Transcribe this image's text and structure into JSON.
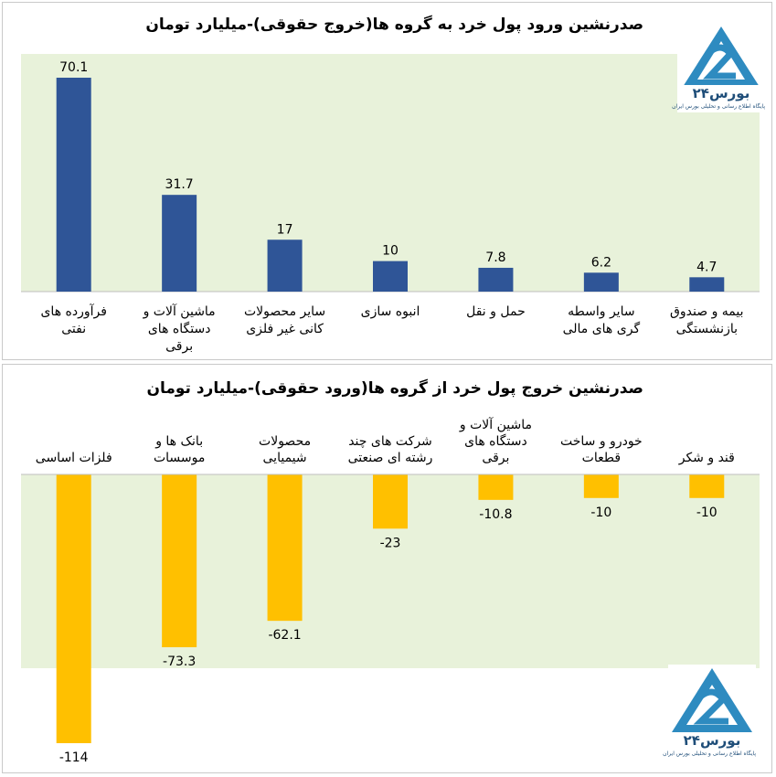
{
  "charts": {
    "inflow": {
      "title": "صدرنشین ورود پول خرد به گروه ها(خروج حقوقی)-میلیارد تومان"
    },
    "outflow": {
      "title": "صدرنشین خروج پول خرد از گروه ها(ورود حقوقی)-میلیارد تومان"
    }
  },
  "logo": {
    "name": "بورس۲۴",
    "tagline": "پایگاه اطلاع رسانی و تحلیلی بورس ایران"
  },
  "chart_data": [
    {
      "type": "bar",
      "title": "صدرنشین ورود پول خرد به گروه ها(خروج حقوقی)-میلیارد تومان",
      "categories": [
        [
          "فرآورده های",
          "نفتی"
        ],
        [
          "ماشین آلات و",
          "دستگاه های",
          "برقی"
        ],
        [
          "سایر محصولات",
          "کانی غیر فلزی"
        ],
        [
          "انبوه سازی"
        ],
        [
          "حمل و نقل"
        ],
        [
          "سایر واسطه",
          "گری های مالی"
        ],
        [
          "بیمه و صندوق",
          "بازنشستگی"
        ]
      ],
      "values": [
        70.1,
        31.7,
        17,
        10,
        7.8,
        6.2,
        4.7
      ],
      "value_labels": [
        "70.1",
        "31.7",
        "17",
        "10",
        "7.8",
        "6.2",
        "4.7"
      ],
      "ylim": [
        0,
        75
      ],
      "bar_color": "#2f5597",
      "background": "#e8f2da",
      "grid": false,
      "legend": "none"
    },
    {
      "type": "bar",
      "title": "صدرنشین خروج پول خرد از گروه ها(ورود حقوقی)-میلیارد تومان",
      "categories": [
        [
          "فلزات اساسی"
        ],
        [
          "بانک ها و",
          "موسسات"
        ],
        [
          "محصولات",
          "شیمیایی"
        ],
        [
          "شرکت های چند",
          "رشته ای صنعتی"
        ],
        [
          "ماشین آلات و",
          "دستگاه های",
          "برقی"
        ],
        [
          "خودرو و ساخت",
          "قطعات"
        ],
        [
          "قند و شکر"
        ]
      ],
      "values": [
        -114,
        -73.3,
        -62.1,
        -23,
        -10.8,
        -10,
        -10
      ],
      "value_labels": [
        "-114",
        "-73.3",
        "-62.1",
        "-23",
        "-10.8",
        "-10",
        "-10"
      ],
      "ylim": [
        -120,
        0
      ],
      "bar_color": "#ffc000",
      "background": "#e8f2da",
      "grid": false,
      "legend": "none"
    }
  ]
}
